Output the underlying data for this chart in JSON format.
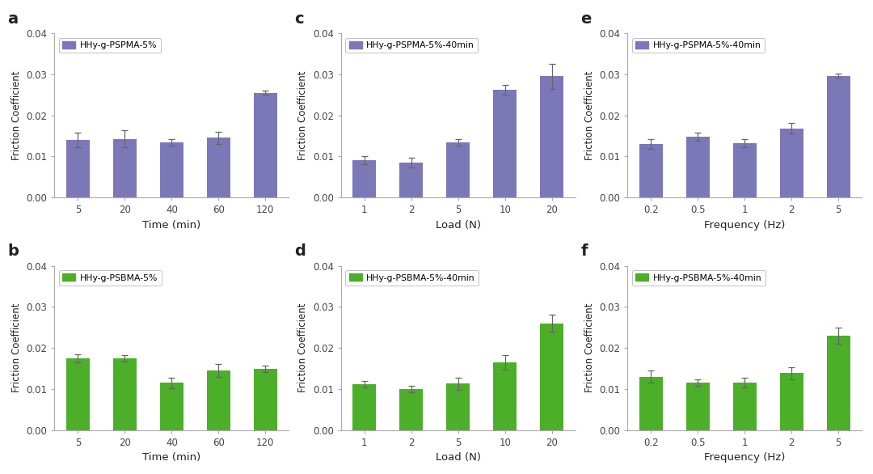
{
  "panels": [
    {
      "label": "a",
      "legend": "HHy-g-PSPMA-5%",
      "bar_color": "#7c78b8",
      "x_labels": [
        "5",
        "20",
        "40",
        "60",
        "120"
      ],
      "xlabel": "Time (min)",
      "ylabel": "Friction Coefficient",
      "ylim": [
        0,
        0.04
      ],
      "yticks": [
        0.0,
        0.01,
        0.02,
        0.03,
        0.04
      ],
      "values": [
        0.014,
        0.0143,
        0.0135,
        0.0145,
        0.0255
      ],
      "errors": [
        0.0018,
        0.002,
        0.0008,
        0.0015,
        0.0005
      ]
    },
    {
      "label": "b",
      "legend": "HHy-g-PSBMA-5%",
      "bar_color": "#4caf29",
      "x_labels": [
        "5",
        "20",
        "40",
        "60",
        "120"
      ],
      "xlabel": "Time (min)",
      "ylabel": "Friction Coefficient",
      "ylim": [
        0,
        0.04
      ],
      "yticks": [
        0.0,
        0.01,
        0.02,
        0.03,
        0.04
      ],
      "values": [
        0.0175,
        0.0175,
        0.0115,
        0.0145,
        0.0148
      ],
      "errors": [
        0.001,
        0.0008,
        0.0013,
        0.0015,
        0.0008
      ]
    },
    {
      "label": "c",
      "legend": "HHy-g-PSPMA-5%-40min",
      "bar_color": "#7c78b8",
      "x_labels": [
        "1",
        "2",
        "5",
        "10",
        "20"
      ],
      "xlabel": "Load (N)",
      "ylabel": "Friction Coefficient",
      "ylim": [
        0,
        0.04
      ],
      "yticks": [
        0.0,
        0.01,
        0.02,
        0.03,
        0.04
      ],
      "values": [
        0.009,
        0.0085,
        0.0135,
        0.0263,
        0.0295
      ],
      "errors": [
        0.001,
        0.0012,
        0.0008,
        0.0012,
        0.003
      ]
    },
    {
      "label": "d",
      "legend": "HHy-g-PSBMA-5%-40min",
      "bar_color": "#4caf29",
      "x_labels": [
        "1",
        "2",
        "5",
        "10",
        "20"
      ],
      "xlabel": "Load (N)",
      "ylabel": "Friction Coefficient",
      "ylim": [
        0,
        0.04
      ],
      "yticks": [
        0.0,
        0.01,
        0.02,
        0.03,
        0.04
      ],
      "values": [
        0.0112,
        0.01,
        0.0113,
        0.0165,
        0.026
      ],
      "errors": [
        0.0008,
        0.0008,
        0.0015,
        0.0018,
        0.002
      ]
    },
    {
      "label": "e",
      "legend": "HHy-g-PSPMA-5%-40min",
      "bar_color": "#7c78b8",
      "x_labels": [
        "0.2",
        "0.5",
        "1",
        "2",
        "5"
      ],
      "xlabel": "Frequency (Hz)",
      "ylabel": "Friction Coefficient",
      "ylim": [
        0,
        0.04
      ],
      "yticks": [
        0.0,
        0.01,
        0.02,
        0.03,
        0.04
      ],
      "values": [
        0.013,
        0.0148,
        0.0133,
        0.0168,
        0.0296
      ],
      "errors": [
        0.0012,
        0.001,
        0.001,
        0.0013,
        0.0005
      ]
    },
    {
      "label": "f",
      "legend": "HHy-g-PSBMA-5%-40min",
      "bar_color": "#4caf29",
      "x_labels": [
        "0.2",
        "0.5",
        "1",
        "2",
        "5"
      ],
      "xlabel": "Frequency (Hz)",
      "ylabel": "Friction Coefficient",
      "ylim": [
        0,
        0.04
      ],
      "yticks": [
        0.0,
        0.01,
        0.02,
        0.03,
        0.04
      ],
      "values": [
        0.013,
        0.0115,
        0.0115,
        0.0138,
        0.023
      ],
      "errors": [
        0.0015,
        0.0008,
        0.0012,
        0.0015,
        0.002
      ]
    }
  ],
  "figure_bg": "#ffffff",
  "axes_bg": "#ffffff",
  "spine_color": "#aaaaaa",
  "tick_color": "#444444",
  "label_color": "#222222",
  "error_color": "#666666"
}
